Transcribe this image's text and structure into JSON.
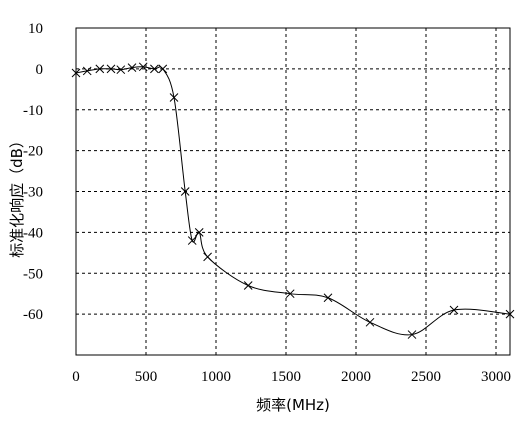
{
  "chart_data": {
    "type": "line",
    "title": "",
    "xlabel": "频率(MHz)",
    "ylabel": "标准化响应（dB）",
    "xlim": [
      0,
      3100
    ],
    "ylim": [
      -70,
      10
    ],
    "x_ticks": [
      0,
      500,
      1000,
      1500,
      2000,
      2500,
      3000
    ],
    "x_tick_labels": [
      "0",
      "500",
      "1000",
      "1500",
      "2000",
      "2500",
      "3000"
    ],
    "y_ticks": [
      10,
      0,
      -10,
      -20,
      -30,
      -40,
      -50,
      -60
    ],
    "y_tick_labels": [
      "10",
      "0",
      "-10",
      "-20",
      "-30",
      "-40",
      "-50",
      "-60"
    ],
    "grid": true,
    "series": [
      {
        "marker": "x",
        "x": [
          0,
          80,
          170,
          250,
          320,
          400,
          480,
          560,
          620,
          700,
          780,
          830,
          880,
          940,
          1230,
          1530,
          1800,
          2100,
          2400,
          2700,
          3100
        ],
        "y": [
          -1,
          -0.5,
          0,
          0,
          -0.2,
          0.3,
          0.5,
          0,
          0,
          -7,
          -30,
          -42,
          -40,
          -46,
          -53,
          -55,
          -56,
          -62,
          -65,
          -59,
          -60
        ]
      }
    ]
  }
}
